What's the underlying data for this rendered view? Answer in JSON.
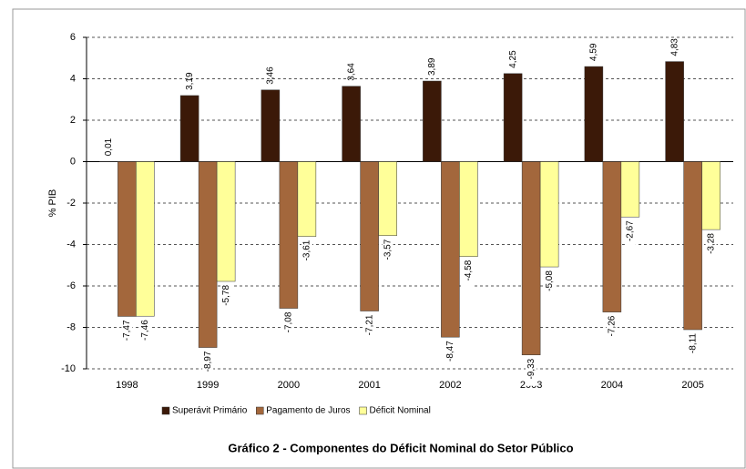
{
  "chart_data": {
    "type": "bar",
    "title": "Gráfico 2 - Componentes do Déficit Nominal do Setor Público",
    "y_label": "% PIB",
    "categories": [
      "1998",
      "1999",
      "2000",
      "2001",
      "2002",
      "2003",
      "2004",
      "2005"
    ],
    "series": [
      {
        "name": "Superávit Primário",
        "color": "#3b1908",
        "values": [
          0.01,
          3.19,
          3.46,
          3.64,
          3.89,
          4.25,
          4.59,
          4.83
        ],
        "value_labels": [
          "0,01",
          "3,19",
          "3,46",
          "3,64",
          "3,89",
          "4,25",
          "4,59",
          "4,83"
        ]
      },
      {
        "name": "Pagamento de Juros",
        "color": "#a3673c",
        "values": [
          -7.47,
          -8.97,
          -7.08,
          -7.21,
          -8.47,
          -9.33,
          -7.26,
          -8.11
        ],
        "value_labels": [
          "-7,47",
          "-8,97",
          "-7,08",
          "-7,21",
          "-8,47",
          "-9,33",
          "-7,26",
          "-8,11"
        ]
      },
      {
        "name": "Déficit Nominal",
        "color": "#ffff99",
        "values": [
          -7.46,
          -5.78,
          -3.61,
          -3.57,
          -4.58,
          -5.08,
          -2.67,
          -3.28
        ],
        "value_labels": [
          "-7,46",
          "-5,78",
          "-3,61",
          "-3,57",
          "-4,58",
          "-5,08",
          "-2,67",
          "-3,28"
        ]
      }
    ],
    "ylim": [
      -10,
      6
    ],
    "yticks": [
      -10,
      -8,
      -6,
      -4,
      -2,
      0,
      2,
      4,
      6
    ],
    "grid": true,
    "legend": "bottom"
  }
}
